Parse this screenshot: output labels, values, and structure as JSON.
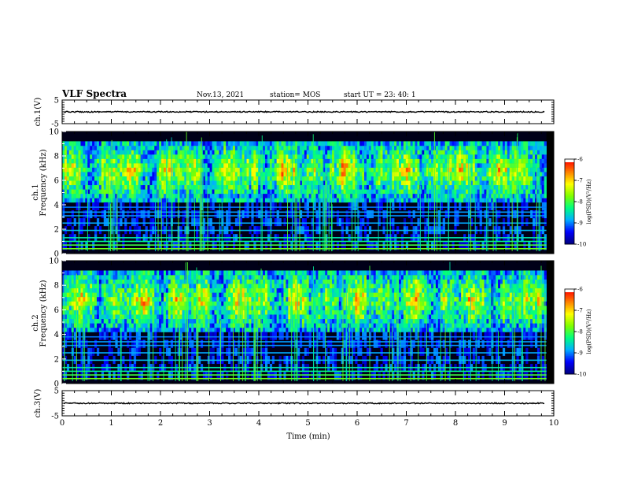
{
  "header": {
    "title": "VLF Spectra",
    "date": "Nov.13, 2021",
    "station": "station= MOS",
    "start": "start  UT  =   23: 40: 1"
  },
  "colors": {
    "colormap": [
      "#000080",
      "#0000ff",
      "#00b0ff",
      "#00ff80",
      "#80ff00",
      "#ffff00",
      "#ff8000",
      "#ff0000",
      "#ffffff"
    ],
    "frame": "#000000",
    "background": "#ffffff"
  },
  "chart_data": [
    {
      "type": "line",
      "name": "ch1-waveform",
      "ylabel": "ch.1(V)",
      "ylim": [
        -5,
        5
      ],
      "yticks": [
        "5",
        "-5"
      ],
      "xlim": [
        0,
        10
      ],
      "baseline": 0
    },
    {
      "type": "heatmap",
      "name": "ch1-spectrogram",
      "ylabel_channel": "ch.1",
      "ylabel": "Frequency (kHz)",
      "ylim": [
        0,
        10
      ],
      "yticks": [
        "0",
        "2",
        "4",
        "6",
        "8",
        "10"
      ],
      "xlim": [
        0,
        10
      ],
      "colorbar": {
        "label": "log(PSD)(V²/Hz)",
        "range": [
          -10,
          -6
        ],
        "ticks": [
          "-6",
          "-7",
          "-8",
          "-9",
          "-10"
        ]
      }
    },
    {
      "type": "heatmap",
      "name": "ch2-spectrogram",
      "ylabel_channel": "ch.2",
      "ylabel": "Frequency (kHz)",
      "ylim": [
        0,
        10
      ],
      "yticks": [
        "0",
        "2",
        "4",
        "6",
        "8",
        "10"
      ],
      "xlim": [
        0,
        10
      ],
      "colorbar": {
        "label": "log(PSD)(V²/Hz)",
        "range": [
          -10,
          -6
        ],
        "ticks": [
          "-6",
          "-7",
          "-8",
          "-9",
          "-10"
        ]
      }
    },
    {
      "type": "line",
      "name": "ch3-waveform",
      "ylabel": "ch.3(V)",
      "ylim": [
        -5,
        5
      ],
      "yticks": [
        "5",
        "-5"
      ],
      "xlim": [
        0,
        10
      ],
      "baseline": 0,
      "xlabel": "Time (min)",
      "xticks": [
        "0",
        "1",
        "2",
        "3",
        "4",
        "5",
        "6",
        "7",
        "8",
        "9",
        "10"
      ]
    }
  ]
}
